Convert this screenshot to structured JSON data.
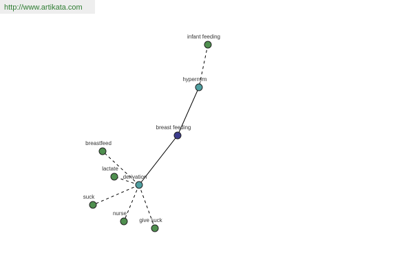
{
  "header": {
    "url": "http://www.artikata.com"
  },
  "nodes": [
    {
      "label": "infant feeding"
    },
    {
      "label": "hypernym"
    },
    {
      "label": "breast feeding"
    },
    {
      "label": "derivation"
    },
    {
      "label": "breastfeed"
    },
    {
      "label": "lactate"
    },
    {
      "label": "suck"
    },
    {
      "label": "nurse"
    },
    {
      "label": "give suck"
    }
  ]
}
